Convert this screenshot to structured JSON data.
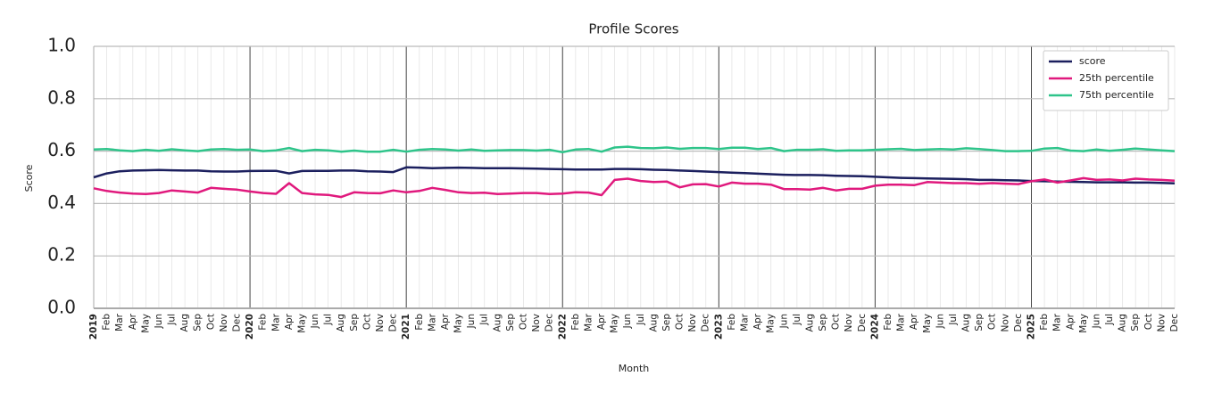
{
  "chart_data": {
    "type": "line",
    "title": "Profile Scores",
    "x_label": "Month",
    "y_label": "Score",
    "categories": [
      "2019",
      "Feb",
      "Mar",
      "Apr",
      "May",
      "Jun",
      "Jul",
      "Aug",
      "Sep",
      "Oct",
      "Nov",
      "Dec",
      "2020",
      "Feb",
      "Mar",
      "Apr",
      "May",
      "Jun",
      "Jul",
      "Aug",
      "Sep",
      "Oct",
      "Nov",
      "Dec",
      "2021",
      "Feb",
      "Mar",
      "Apr",
      "May",
      "Jun",
      "Jul",
      "Aug",
      "Sep",
      "Oct",
      "Nov",
      "Dec",
      "2022",
      "Feb",
      "Mar",
      "Apr",
      "May",
      "Jun",
      "Jul",
      "Aug",
      "Sep",
      "Oct",
      "Nov",
      "Dec",
      "2023",
      "Feb",
      "Mar",
      "Apr",
      "May",
      "Jun",
      "Jul",
      "Aug",
      "Sep",
      "Oct",
      "Nov",
      "Dec",
      "2024",
      "Feb",
      "Mar",
      "Apr",
      "May",
      "Jun",
      "Jul",
      "Aug",
      "Sep",
      "Oct",
      "Nov",
      "Dec",
      "2025",
      "Feb",
      "Mar",
      "Apr",
      "May",
      "Jun",
      "Jul",
      "Aug",
      "Sep",
      "Oct",
      "Nov",
      "Dec"
    ],
    "series": [
      {
        "name": "score",
        "color": "#1b1f5e",
        "values": [
          0.5,
          0.515,
          0.523,
          0.526,
          0.527,
          0.528,
          0.527,
          0.526,
          0.526,
          0.523,
          0.522,
          0.522,
          0.524,
          0.525,
          0.525,
          0.515,
          0.524,
          0.525,
          0.525,
          0.526,
          0.526,
          0.523,
          0.522,
          0.52,
          0.538,
          0.537,
          0.535,
          0.536,
          0.537,
          0.536,
          0.535,
          0.535,
          0.535,
          0.534,
          0.533,
          0.532,
          0.531,
          0.53,
          0.53,
          0.53,
          0.532,
          0.532,
          0.531,
          0.529,
          0.528,
          0.526,
          0.524,
          0.522,
          0.52,
          0.518,
          0.516,
          0.514,
          0.512,
          0.51,
          0.509,
          0.509,
          0.508,
          0.506,
          0.505,
          0.504,
          0.502,
          0.5,
          0.498,
          0.497,
          0.496,
          0.495,
          0.494,
          0.493,
          0.49,
          0.49,
          0.489,
          0.488,
          0.486,
          0.485,
          0.484,
          0.483,
          0.482,
          0.481,
          0.481,
          0.481,
          0.48,
          0.48,
          0.479,
          0.477
        ]
      },
      {
        "name": "25th percentile",
        "color": "#e0197d",
        "values": [
          0.458,
          0.448,
          0.442,
          0.438,
          0.436,
          0.44,
          0.45,
          0.446,
          0.442,
          0.46,
          0.456,
          0.453,
          0.446,
          0.44,
          0.437,
          0.478,
          0.44,
          0.435,
          0.433,
          0.425,
          0.443,
          0.44,
          0.439,
          0.45,
          0.443,
          0.448,
          0.46,
          0.452,
          0.443,
          0.44,
          0.441,
          0.436,
          0.438,
          0.44,
          0.44,
          0.436,
          0.438,
          0.443,
          0.442,
          0.432,
          0.49,
          0.495,
          0.486,
          0.482,
          0.484,
          0.462,
          0.473,
          0.474,
          0.465,
          0.48,
          0.476,
          0.476,
          0.472,
          0.455,
          0.455,
          0.453,
          0.46,
          0.45,
          0.456,
          0.456,
          0.468,
          0.472,
          0.472,
          0.47,
          0.482,
          0.48,
          0.478,
          0.478,
          0.475,
          0.478,
          0.476,
          0.474,
          0.485,
          0.492,
          0.48,
          0.488,
          0.497,
          0.49,
          0.492,
          0.488,
          0.495,
          0.492,
          0.49,
          0.487
        ]
      },
      {
        "name": "75th percentile",
        "color": "#2ec48a",
        "values": [
          0.606,
          0.608,
          0.603,
          0.6,
          0.605,
          0.601,
          0.607,
          0.603,
          0.6,
          0.606,
          0.608,
          0.605,
          0.606,
          0.6,
          0.603,
          0.612,
          0.6,
          0.605,
          0.603,
          0.598,
          0.602,
          0.598,
          0.598,
          0.605,
          0.598,
          0.605,
          0.608,
          0.606,
          0.602,
          0.606,
          0.601,
          0.603,
          0.604,
          0.604,
          0.602,
          0.605,
          0.596,
          0.606,
          0.608,
          0.598,
          0.614,
          0.617,
          0.612,
          0.611,
          0.614,
          0.609,
          0.612,
          0.612,
          0.608,
          0.613,
          0.613,
          0.608,
          0.612,
          0.6,
          0.605,
          0.605,
          0.607,
          0.601,
          0.603,
          0.603,
          0.605,
          0.607,
          0.609,
          0.604,
          0.606,
          0.608,
          0.606,
          0.611,
          0.608,
          0.604,
          0.6,
          0.6,
          0.601,
          0.61,
          0.612,
          0.602,
          0.6,
          0.606,
          0.601,
          0.605,
          0.61,
          0.606,
          0.603,
          0.6
        ]
      }
    ],
    "ylim": [
      0,
      1
    ],
    "yticks": [
      {
        "value": 0,
        "label": "0.0"
      },
      0.2,
      0.4,
      0.6,
      0.8,
      {
        "value": 1,
        "label": "1.0"
      }
    ],
    "grid": true,
    "legend": "upper right"
  }
}
